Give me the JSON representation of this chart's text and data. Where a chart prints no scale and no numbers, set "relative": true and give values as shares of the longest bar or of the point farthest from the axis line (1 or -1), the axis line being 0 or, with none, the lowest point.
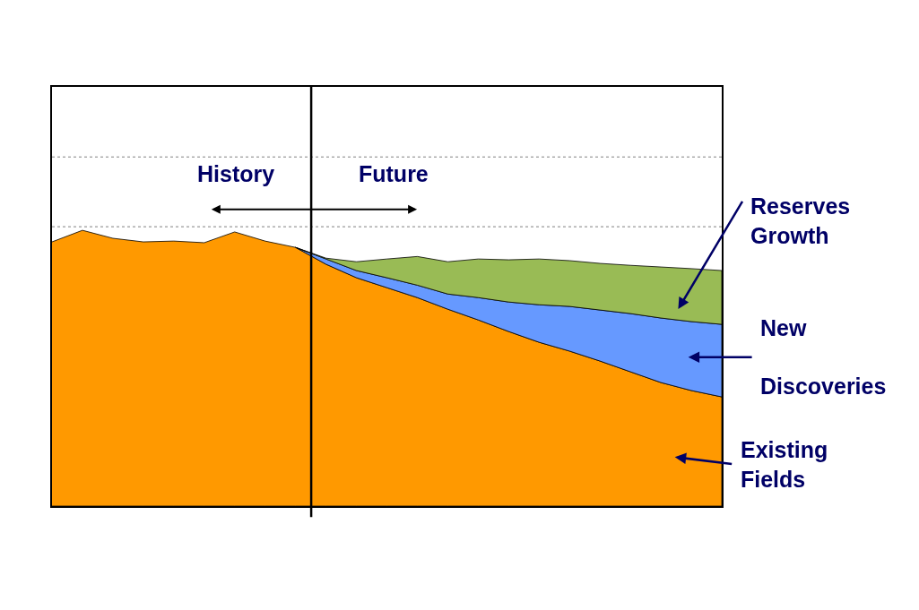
{
  "chart_data": {
    "type": "area",
    "stacked": true,
    "relative": true,
    "categories": [
      null,
      null,
      null,
      null,
      null,
      null,
      null,
      null,
      null,
      null,
      null,
      null,
      null,
      null,
      null,
      null,
      null,
      null,
      null,
      null,
      null,
      null,
      null
    ],
    "series": [
      {
        "color": "#ff9900",
        "values": [
          0.958,
          1.0,
          0.971,
          0.958,
          0.961,
          0.955,
          0.994,
          0.961,
          0.938,
          0.877,
          0.828,
          0.792,
          0.756,
          0.714,
          0.675,
          0.633,
          0.594,
          0.562,
          0.526,
          0.487,
          0.448,
          0.419,
          0.396
        ]
      },
      {
        "color": "#6699ff",
        "values": [
          null,
          null,
          null,
          null,
          null,
          null,
          null,
          null,
          0,
          0.019,
          0.026,
          0.036,
          0.045,
          0.055,
          0.081,
          0.107,
          0.136,
          0.162,
          0.185,
          0.211,
          0.234,
          0.25,
          0.263
        ]
      },
      {
        "color": "#99bb55",
        "values": [
          null,
          null,
          null,
          null,
          null,
          null,
          null,
          null,
          0,
          0.003,
          0.032,
          0.068,
          0.104,
          0.117,
          0.14,
          0.153,
          0.166,
          0.166,
          0.169,
          0.175,
          0.185,
          0.192,
          0.195
        ]
      }
    ],
    "ref_lines": [
      {
        "axis": "y",
        "value": 1.013,
        "color": "#808080",
        "line_style": "dotted"
      },
      {
        "axis": "y",
        "value": 1.266,
        "color": "#808080",
        "line_style": "dotted"
      }
    ],
    "annotations": [
      "History",
      "Future",
      "Reserves\nGrowth",
      "New\nDiscoveries",
      "Existing\nFields"
    ]
  }
}
